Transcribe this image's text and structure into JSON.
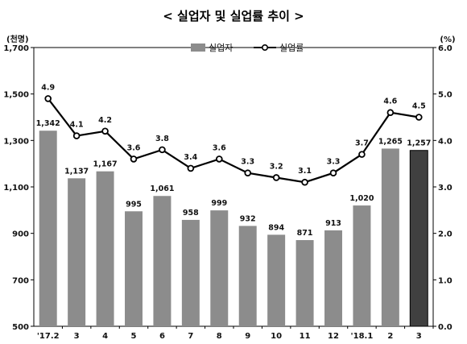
{
  "chart_data": {
    "type": "bar",
    "title": "< 실업자 및 실업률 추이 >",
    "left_unit": "(천명)",
    "right_unit": "(%)",
    "categories": [
      "'17.2",
      "3",
      "4",
      "5",
      "6",
      "7",
      "8",
      "9",
      "10",
      "11",
      "12",
      "'18.1",
      "2",
      "3"
    ],
    "series": [
      {
        "name": "실업자",
        "type": "bar",
        "axis": "left",
        "values": [
          1342,
          1137,
          1167,
          995,
          1061,
          958,
          999,
          932,
          894,
          871,
          913,
          1020,
          1265,
          1257
        ],
        "labels": [
          "1,342",
          "1,137",
          "1,167",
          "995",
          "1,061",
          "958",
          "999",
          "932",
          "894",
          "871",
          "913",
          "1,020",
          "1,265",
          "1,257"
        ]
      },
      {
        "name": "실업률",
        "type": "line",
        "axis": "right",
        "values": [
          4.9,
          4.1,
          4.2,
          3.6,
          3.8,
          3.4,
          3.6,
          3.3,
          3.2,
          3.1,
          3.3,
          3.7,
          4.6,
          4.5
        ],
        "labels": [
          "4.9",
          "4.1",
          "4.2",
          "3.6",
          "3.8",
          "3.4",
          "3.6",
          "3.3",
          "3.2",
          "3.1",
          "3.3",
          "3.7",
          "4.6",
          "4.5"
        ]
      }
    ],
    "left_axis": {
      "min": 500,
      "max": 1700,
      "ticks": [
        "500",
        "700",
        "900",
        "1,100",
        "1,300",
        "1,500",
        "1,700"
      ]
    },
    "right_axis": {
      "min": 0,
      "max": 6,
      "ticks": [
        "0.0",
        "1.0",
        "2.0",
        "3.0",
        "4.0",
        "5.0",
        "6.0"
      ]
    },
    "grid": false,
    "legend_position": "top",
    "highlight_last_bar": true,
    "colors": {
      "bar": "#8c8c8c",
      "bar_highlight": "#404040",
      "line": "#000000",
      "marker_fill": "#ffffff"
    }
  }
}
